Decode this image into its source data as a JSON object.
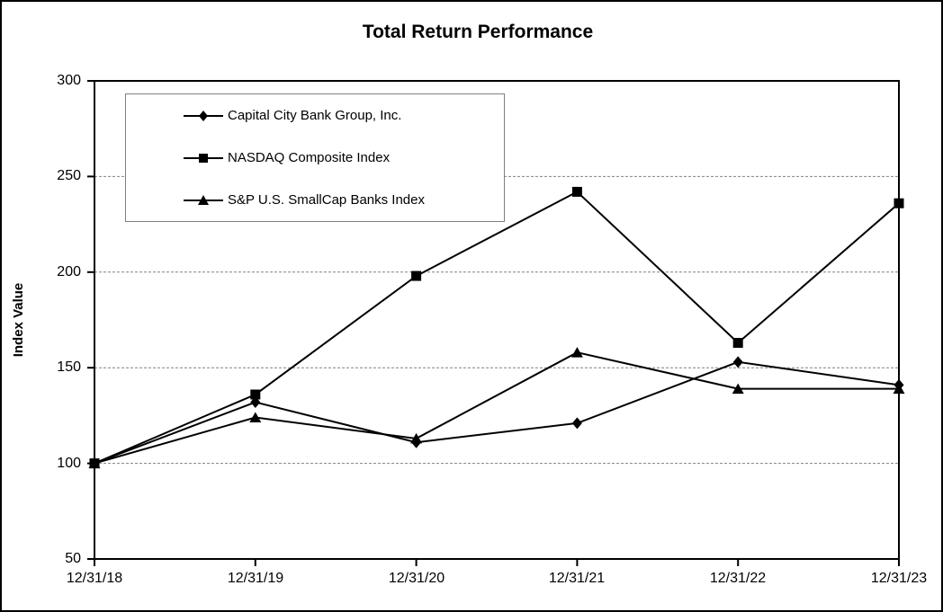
{
  "chart_data": {
    "type": "line",
    "title": "Total Return Performance",
    "ylabel": "Index Value",
    "xlabel": "",
    "categories": [
      "12/31/18",
      "12/31/19",
      "12/31/20",
      "12/31/21",
      "12/31/22",
      "12/31/23"
    ],
    "ytick_labels": [
      "300",
      "250",
      "200",
      "150",
      "100",
      "50"
    ],
    "yticks": [
      300,
      250,
      200,
      150,
      100,
      50
    ],
    "ylim": [
      50,
      300
    ],
    "gridline_values": [
      100,
      150,
      200,
      250
    ],
    "grid": "horizontal-dashed",
    "legend_position": "top-left-inside",
    "line_color": "#000000",
    "grid_color": "#808080",
    "series": [
      {
        "name": "Capital City Bank Group, Inc.",
        "marker": "diamond",
        "values": [
          100,
          132,
          111,
          121,
          153,
          141
        ]
      },
      {
        "name": "NASDAQ Composite Index",
        "marker": "square",
        "values": [
          100,
          136,
          198,
          242,
          163,
          236
        ]
      },
      {
        "name": "S&P U.S. SmallCap Banks Index",
        "marker": "triangle",
        "values": [
          100,
          124,
          113,
          158,
          139,
          139
        ]
      }
    ]
  }
}
